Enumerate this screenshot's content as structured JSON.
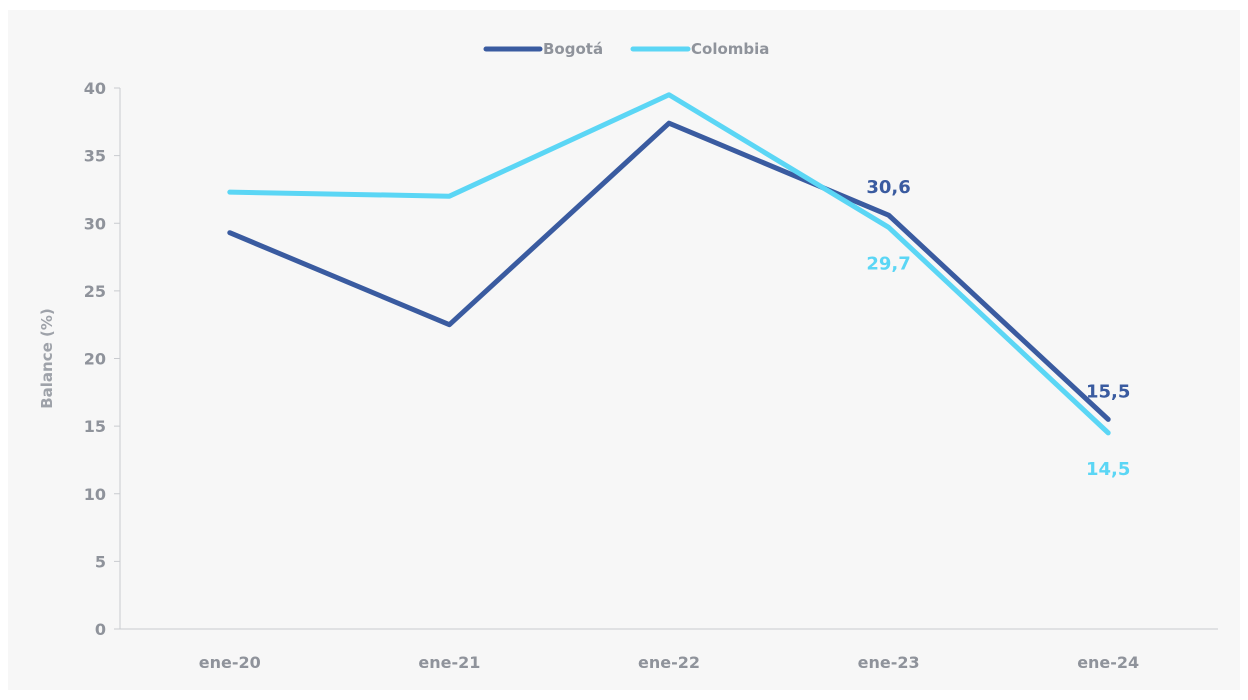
{
  "chart_data": {
    "type": "line",
    "title": "",
    "xlabel": "",
    "ylabel": "Balance (%)",
    "categories": [
      "ene-20",
      "ene-21",
      "ene-22",
      "ene-23",
      "ene-24"
    ],
    "ylim": [
      0,
      40
    ],
    "yticks": [
      "0",
      "5",
      "10",
      "15",
      "20",
      "25",
      "30",
      "35",
      "40"
    ],
    "grid": false,
    "legend_position": "top-center",
    "series": [
      {
        "name": "Bogotá",
        "color": "#3a5ba0",
        "values": [
          29.3,
          22.5,
          37.4,
          30.6,
          15.5
        ],
        "labels": [
          "",
          "",
          "",
          "30,6",
          "15,5"
        ]
      },
      {
        "name": "Colombia",
        "color": "#5bd6f5",
        "values": [
          32.3,
          32.0,
          39.5,
          29.7,
          14.5
        ],
        "labels": [
          "",
          "",
          "",
          "29,7",
          "14,5"
        ]
      }
    ]
  }
}
